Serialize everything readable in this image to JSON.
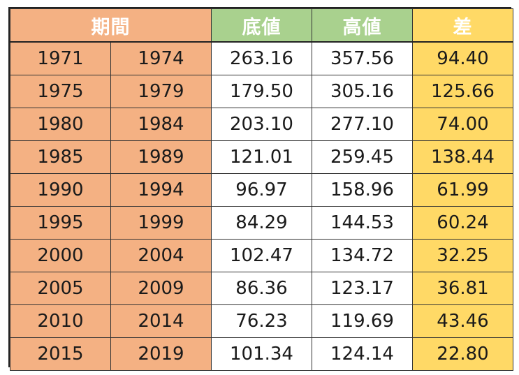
{
  "table": {
    "headers": {
      "period": "期間",
      "low": "底値",
      "high": "高値",
      "diff": "差"
    },
    "rows": [
      {
        "start": "1971",
        "end": "1974",
        "low": "263.16",
        "high": "357.56",
        "diff": "94.40"
      },
      {
        "start": "1975",
        "end": "1979",
        "low": "179.50",
        "high": "305.16",
        "diff": "125.66"
      },
      {
        "start": "1980",
        "end": "1984",
        "low": "203.10",
        "high": "277.10",
        "diff": "74.00"
      },
      {
        "start": "1985",
        "end": "1989",
        "low": "121.01",
        "high": "259.45",
        "diff": "138.44"
      },
      {
        "start": "1990",
        "end": "1994",
        "low": "96.97",
        "high": "158.96",
        "diff": "61.99"
      },
      {
        "start": "1995",
        "end": "1999",
        "low": "84.29",
        "high": "144.53",
        "diff": "60.24"
      },
      {
        "start": "2000",
        "end": "2004",
        "low": "102.47",
        "high": "134.72",
        "diff": "32.25"
      },
      {
        "start": "2005",
        "end": "2009",
        "low": "86.36",
        "high": "123.17",
        "diff": "36.81"
      },
      {
        "start": "2010",
        "end": "2014",
        "low": "76.23",
        "high": "119.69",
        "diff": "43.46"
      },
      {
        "start": "2015",
        "end": "2019",
        "low": "101.34",
        "high": "124.14",
        "diff": "22.80"
      }
    ]
  },
  "colors": {
    "period_fill": "#F4B183",
    "price_header_fill": "#A9D18E",
    "diff_fill": "#FFD966",
    "header_text": "#FFFFFF"
  }
}
